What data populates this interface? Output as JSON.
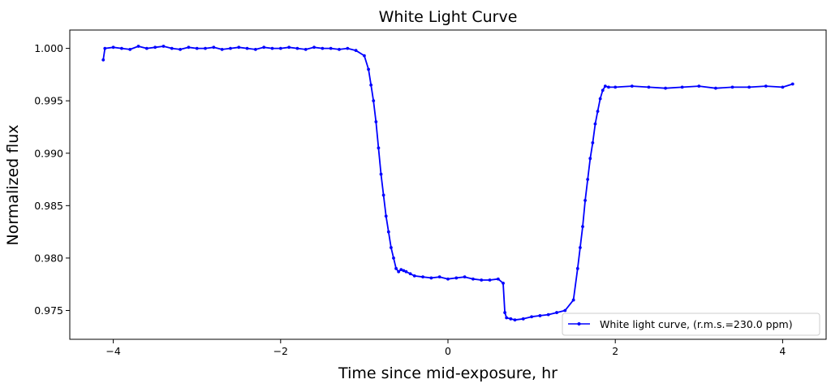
{
  "chart_data": {
    "type": "line",
    "title": "White Light Curve",
    "xlabel": "Time since mid-exposure, hr",
    "ylabel": "Normalized flux",
    "xlim": [
      -4.52,
      4.52
    ],
    "ylim": [
      0.97225,
      1.00175
    ],
    "xticks": [
      -4,
      -2,
      0,
      2,
      4
    ],
    "xtick_labels": [
      "−4",
      "−2",
      "0",
      "2",
      "4"
    ],
    "yticks": [
      0.975,
      0.98,
      0.985,
      0.99,
      0.995,
      1.0
    ],
    "ytick_labels": [
      "0.975",
      "0.980",
      "0.985",
      "0.990",
      "0.995",
      "1.000"
    ],
    "grid": false,
    "legend_position": "lower-right",
    "series": [
      {
        "name": "White light curve, (r.m.s.=230.0 ppm)",
        "color": "#0000ff",
        "marker": "dot",
        "x": [
          -4.12,
          -4.1,
          -4.0,
          -3.9,
          -3.8,
          -3.7,
          -3.6,
          -3.5,
          -3.4,
          -3.3,
          -3.2,
          -3.1,
          -3.0,
          -2.9,
          -2.8,
          -2.7,
          -2.6,
          -2.5,
          -2.4,
          -2.3,
          -2.2,
          -2.1,
          -2.0,
          -1.9,
          -1.8,
          -1.7,
          -1.6,
          -1.5,
          -1.4,
          -1.3,
          -1.2,
          -1.1,
          -1.0,
          -0.95,
          -0.92,
          -0.89,
          -0.86,
          -0.83,
          -0.8,
          -0.77,
          -0.74,
          -0.71,
          -0.68,
          -0.65,
          -0.62,
          -0.59,
          -0.56,
          -0.53,
          -0.5,
          -0.45,
          -0.4,
          -0.3,
          -0.2,
          -0.1,
          0.0,
          0.1,
          0.2,
          0.3,
          0.4,
          0.5,
          0.6,
          0.66,
          0.68,
          0.7,
          0.75,
          0.8,
          0.9,
          1.0,
          1.1,
          1.2,
          1.3,
          1.4,
          1.5,
          1.55,
          1.58,
          1.61,
          1.64,
          1.67,
          1.7,
          1.73,
          1.76,
          1.79,
          1.82,
          1.85,
          1.88,
          1.92,
          2.0,
          2.2,
          2.4,
          2.6,
          2.8,
          3.0,
          3.2,
          3.4,
          3.6,
          3.8,
          4.0,
          4.12
        ],
        "y": [
          0.9989,
          1.0,
          1.0001,
          1.0,
          0.9999,
          1.0002,
          1.0,
          1.0001,
          1.0002,
          1.0,
          0.9999,
          1.0001,
          1.0,
          1.0,
          1.0001,
          0.9999,
          1.0,
          1.0001,
          1.0,
          0.9999,
          1.0001,
          1.0,
          1.0,
          1.0001,
          1.0,
          0.9999,
          1.0001,
          1.0,
          1.0,
          0.9999,
          1.0,
          0.9998,
          0.9993,
          0.998,
          0.9965,
          0.995,
          0.993,
          0.9905,
          0.988,
          0.986,
          0.984,
          0.9825,
          0.981,
          0.98,
          0.979,
          0.9787,
          0.9789,
          0.9788,
          0.9787,
          0.9785,
          0.9783,
          0.9782,
          0.9781,
          0.9782,
          0.978,
          0.9781,
          0.9782,
          0.978,
          0.9779,
          0.9779,
          0.978,
          0.9776,
          0.9748,
          0.9743,
          0.9742,
          0.9741,
          0.9742,
          0.9744,
          0.9745,
          0.9746,
          0.9748,
          0.975,
          0.976,
          0.979,
          0.981,
          0.983,
          0.9855,
          0.9875,
          0.9895,
          0.991,
          0.9928,
          0.994,
          0.9952,
          0.996,
          0.9964,
          0.9963,
          0.9963,
          0.9964,
          0.9963,
          0.9962,
          0.9963,
          0.9964,
          0.9962,
          0.9963,
          0.9963,
          0.9964,
          0.9963,
          0.9966
        ]
      }
    ]
  }
}
